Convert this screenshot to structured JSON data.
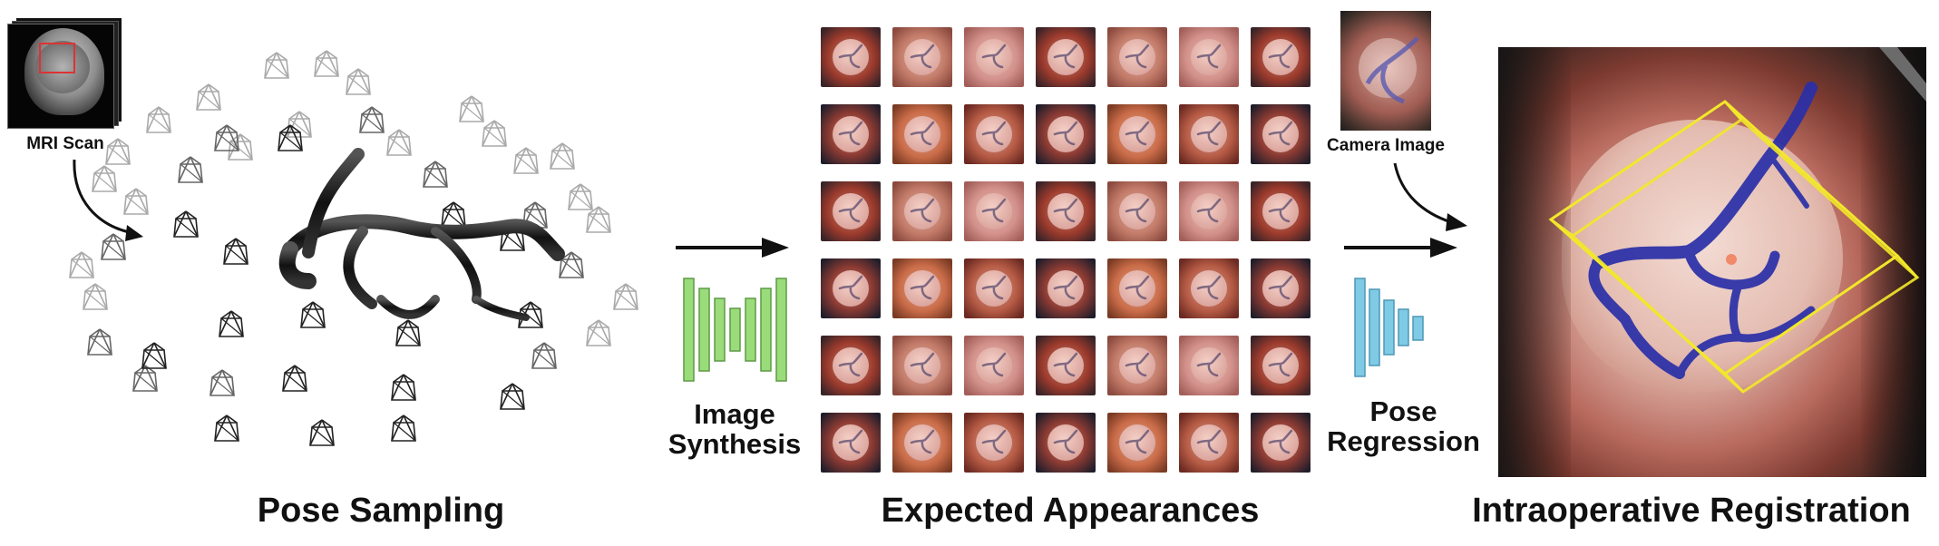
{
  "panels": {
    "pose_sampling": {
      "title": "Pose Sampling",
      "mri_label": "MRI Scan"
    },
    "expected_appearances": {
      "title": "Expected Appearances",
      "synthesis_label": "Image\nSynthesis"
    },
    "registration": {
      "title": "Intraoperative Registration",
      "camera_label": "Camera Image",
      "regression_label": "Pose\nRegression"
    }
  },
  "colors": {
    "synthesis_network": "#9bdc7a",
    "regression_network": "#7fcbe6",
    "overlay_box": "#f2e82a",
    "vessel_overlay": "#2a2fa8"
  }
}
